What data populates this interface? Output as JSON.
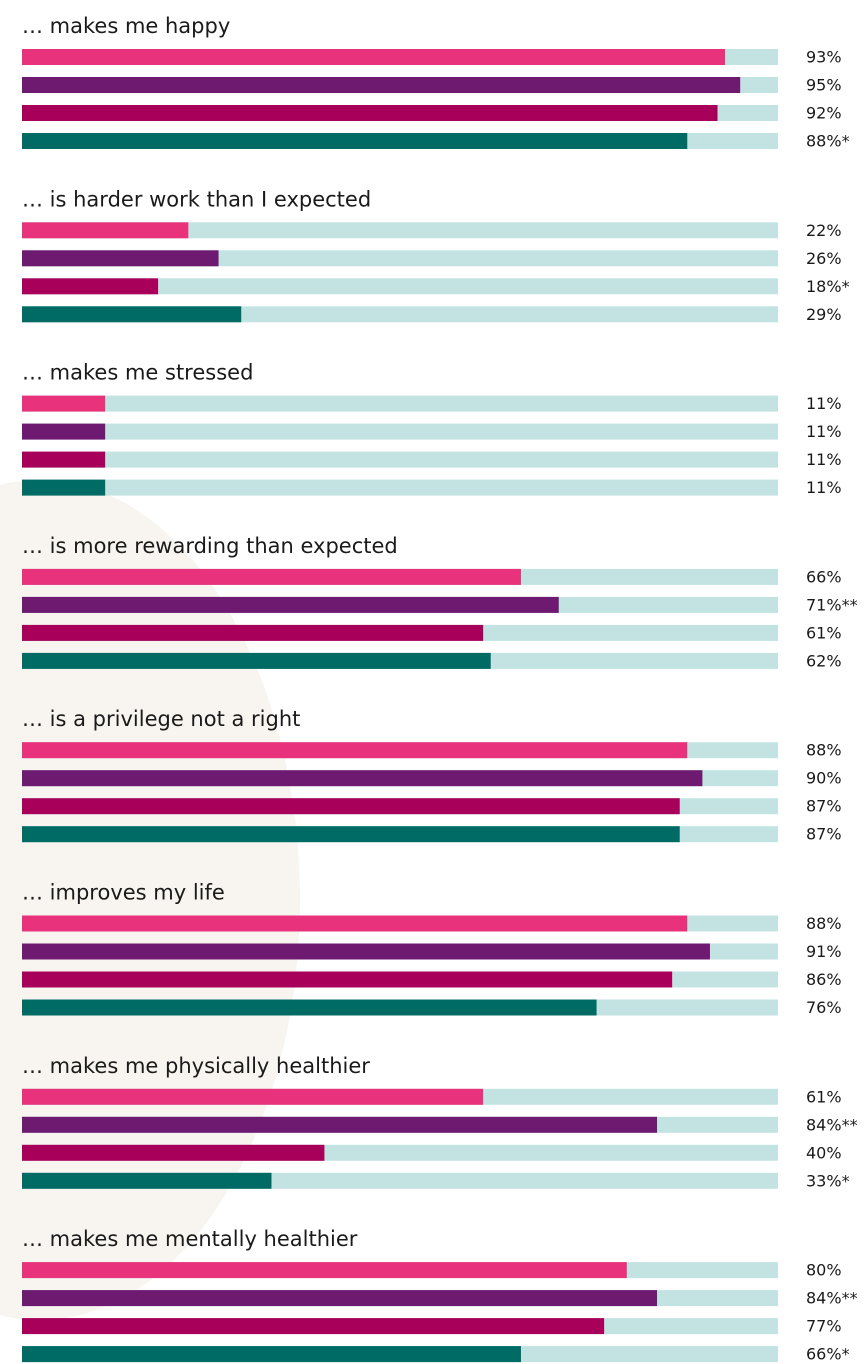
{
  "chart_data": {
    "type": "bar",
    "orientation": "horizontal",
    "xlim": [
      0,
      100
    ],
    "colors": [
      "#e8327c",
      "#6e1a70",
      "#a8005a",
      "#006b65"
    ],
    "track_color": "#c3e3e3",
    "groups": [
      {
        "title": "… makes me happy",
        "values": [
          93,
          95,
          92,
          88
        ],
        "value_labels": [
          "93%",
          "95%",
          "92%",
          "88%*"
        ]
      },
      {
        "title": "… is harder work than I expected",
        "values": [
          22,
          26,
          18,
          29
        ],
        "value_labels": [
          "22%",
          "26%",
          "18%*",
          "29%"
        ]
      },
      {
        "title": "… makes me stressed",
        "values": [
          11,
          11,
          11,
          11
        ],
        "value_labels": [
          "11%",
          "11%",
          "11%",
          "11%"
        ]
      },
      {
        "title": "… is more rewarding than expected",
        "values": [
          66,
          71,
          61,
          62
        ],
        "value_labels": [
          "66%",
          "71%**",
          "61%",
          "62%"
        ]
      },
      {
        "title": "… is a privilege not a right",
        "values": [
          88,
          90,
          87,
          87
        ],
        "value_labels": [
          "88%",
          "90%",
          "87%",
          "87%"
        ]
      },
      {
        "title": "… improves my life",
        "values": [
          88,
          91,
          86,
          76
        ],
        "value_labels": [
          "88%",
          "91%",
          "86%",
          "76%"
        ]
      },
      {
        "title": "… makes me physically healthier",
        "values": [
          61,
          84,
          40,
          33
        ],
        "value_labels": [
          "61%",
          "84%**",
          "40%",
          "33%*"
        ]
      },
      {
        "title": "… makes me mentally healthier",
        "values": [
          80,
          84,
          77,
          66
        ],
        "value_labels": [
          "80%",
          "84%**",
          "77%",
          "66%*"
        ]
      }
    ]
  }
}
